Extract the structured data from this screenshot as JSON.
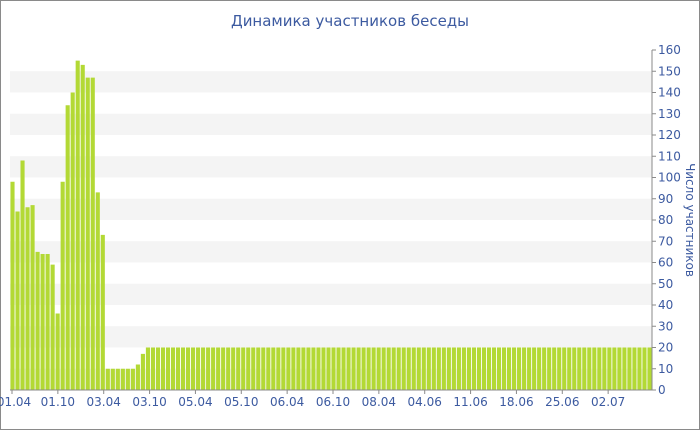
{
  "chart_data": {
    "type": "bar",
    "title": "Динамика участников беседы",
    "xlabel": "",
    "ylabel": "Число участников",
    "ylim": [
      0,
      160
    ],
    "y_ticks": [
      0,
      10,
      20,
      30,
      40,
      50,
      60,
      70,
      80,
      90,
      100,
      110,
      120,
      130,
      140,
      150,
      160
    ],
    "x_tick_labels": [
      "01.04",
      "01.10",
      "03.04",
      "03.10",
      "05.04",
      "05.10",
      "06.04",
      "06.10",
      "08.04",
      "04.06",
      "11.06",
      "18.06",
      "25.06",
      "02.07"
    ],
    "grid": "horizontal bands",
    "bar_color": "#b3d935",
    "values": [
      98,
      84,
      108,
      86,
      87,
      65,
      64,
      64,
      59,
      36,
      98,
      134,
      140,
      155,
      153,
      147,
      147,
      93,
      73,
      10,
      10,
      10,
      10,
      10,
      10,
      12,
      17,
      20,
      20,
      20,
      20,
      20,
      20,
      20,
      20,
      20,
      20,
      20,
      20,
      20,
      20,
      20,
      20,
      20,
      20,
      20,
      20,
      20,
      20,
      20,
      20,
      20,
      20,
      20,
      20,
      20,
      20,
      20,
      20,
      20,
      20,
      20,
      20,
      20,
      20,
      20,
      20,
      20,
      20,
      20,
      20,
      20,
      20,
      20,
      20,
      20,
      20,
      20,
      20,
      20,
      20,
      20,
      20,
      20,
      20,
      20,
      20,
      20,
      20,
      20,
      20,
      20,
      20,
      20,
      20,
      20,
      20,
      20,
      20,
      20,
      20,
      20,
      20,
      20,
      20,
      20,
      20,
      20,
      20,
      20,
      20,
      20,
      20,
      20,
      20,
      20,
      20,
      20,
      20,
      20,
      20,
      20,
      20,
      20,
      20,
      20,
      20,
      20
    ]
  }
}
